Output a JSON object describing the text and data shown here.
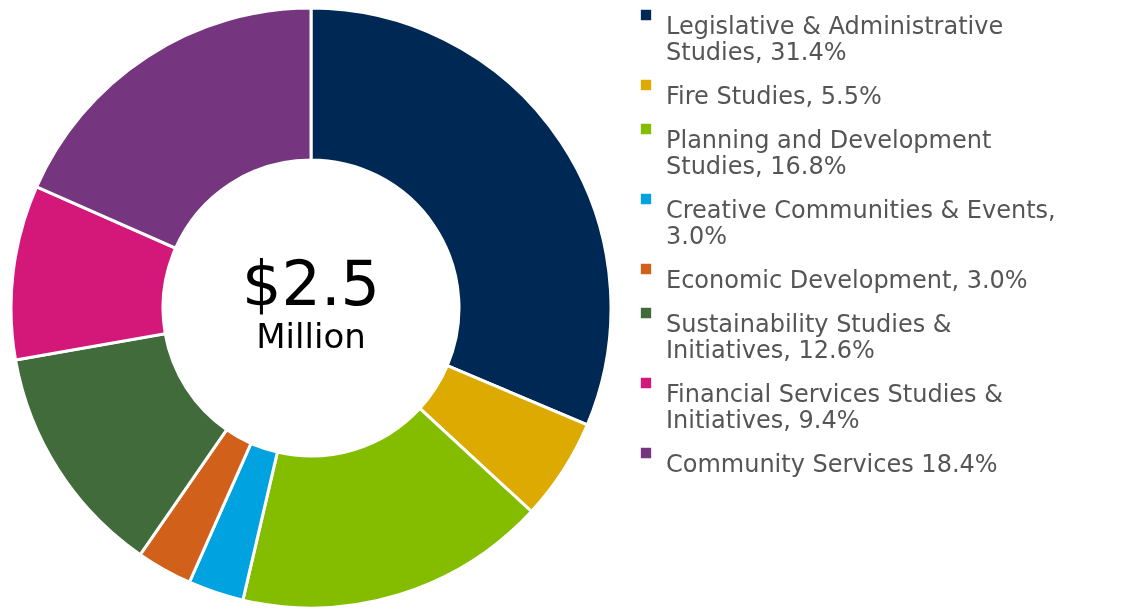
{
  "chart_data": {
    "type": "donut",
    "categories": [
      "Legislative & Administrative Studies, 31.4%",
      "Fire Studies, 5.5%",
      "Planning and Development Studies, 16.8%",
      "Creative Communities & Events, 3.0%",
      "Economic Development, 3.0%",
      "Sustainability Studies & Initiatives, 12.6%",
      "Financial Services Studies & Initiatives, 9.4%",
      "Community Services 18.4%"
    ],
    "values": [
      31.4,
      5.5,
      16.8,
      3.0,
      3.0,
      12.6,
      9.4,
      18.4
    ],
    "colors": [
      "#002855",
      "#dcaa00",
      "#84bd00",
      "#00a3e0",
      "#d0601a",
      "#426b3c",
      "#d4187a",
      "#76357f"
    ],
    "annotations": [
      "$2.5",
      "Million"
    ],
    "legend": "right"
  }
}
